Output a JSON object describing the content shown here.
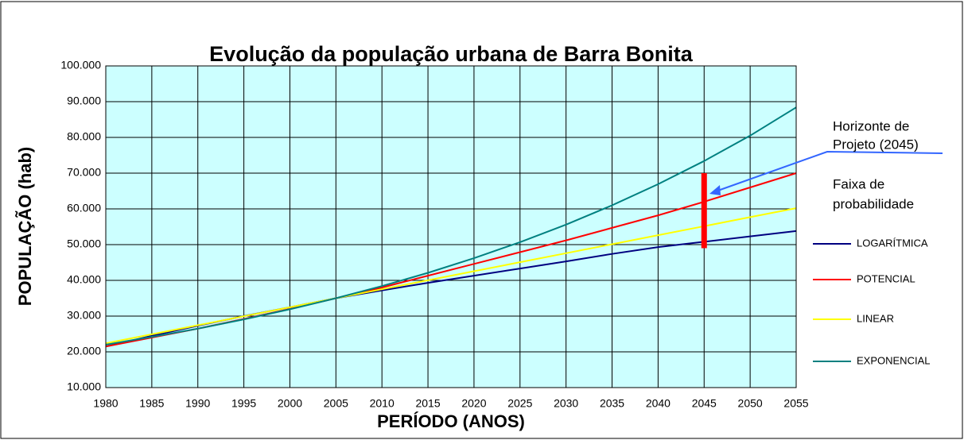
{
  "chart_data": {
    "type": "line",
    "title": "Evolução da população urbana de Barra Bonita",
    "xlabel": "PERÍODO (ANOS)",
    "ylabel": "POPULAÇÃO (hab)",
    "x": [
      1980,
      1985,
      1990,
      1995,
      2000,
      2005,
      2010,
      2015,
      2020,
      2025,
      2030,
      2035,
      2040,
      2045,
      2050,
      2055
    ],
    "series": [
      {
        "name": "LOGARÍTMICA",
        "color": "#000080",
        "values": [
          21500,
          24500,
          27300,
          30000,
          32500,
          35000,
          37200,
          39300,
          41300,
          43300,
          45300,
          47400,
          49300,
          50800,
          52300,
          53800
        ]
      },
      {
        "name": "POTENCIAL",
        "color": "#ff0000",
        "values": [
          21500,
          24000,
          26500,
          29200,
          32000,
          35000,
          38000,
          41300,
          44600,
          47900,
          51200,
          54700,
          58200,
          62000,
          66000,
          70000
        ]
      },
      {
        "name": "LINEAR",
        "color": "#ffff00",
        "values": [
          22400,
          24920,
          27440,
          29960,
          32480,
          35000,
          37520,
          40040,
          42560,
          45080,
          47600,
          50120,
          52640,
          55160,
          57680,
          60200
        ]
      },
      {
        "name": "EXPONENCIAL",
        "color": "#008080",
        "values": [
          22000,
          24200,
          26500,
          29100,
          31900,
          35000,
          38400,
          42100,
          46200,
          50700,
          55600,
          61000,
          66900,
          73400,
          80500,
          88400
        ]
      }
    ],
    "xlim": [
      1980,
      2055
    ],
    "xticks": [
      1980,
      1985,
      1990,
      1995,
      2000,
      2005,
      2010,
      2015,
      2020,
      2025,
      2030,
      2035,
      2040,
      2045,
      2050,
      2055
    ],
    "ylim": [
      10000,
      100000
    ],
    "yticks": [
      {
        "value": 10000,
        "label": "10.000"
      },
      {
        "value": 20000,
        "label": "20.000"
      },
      {
        "value": 30000,
        "label": "30.000"
      },
      {
        "value": 40000,
        "label": "40.000"
      },
      {
        "value": 50000,
        "label": "50.000"
      },
      {
        "value": 60000,
        "label": "60.000"
      },
      {
        "value": 70000,
        "label": "70.000"
      },
      {
        "value": 80000,
        "label": "80.000"
      },
      {
        "value": 90000,
        "label": "90.000"
      },
      {
        "value": 100000,
        "label": "100.000"
      }
    ],
    "grid": true,
    "legend": "right",
    "annotations": [
      {
        "lines": [
          "Horizonte de",
          "Projeto (2045)"
        ]
      },
      {
        "lines": [
          "Faixa de",
          "probabilidade"
        ],
        "x": 2045,
        "ylow": 49000,
        "yhigh": 70000,
        "color": "#ff0000"
      }
    ]
  }
}
